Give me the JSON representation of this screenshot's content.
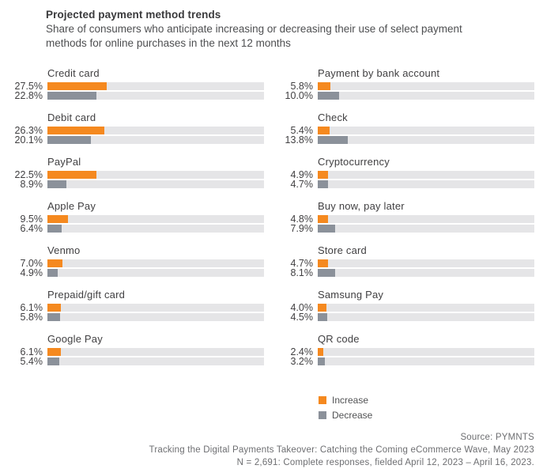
{
  "header": {
    "title": "Projected payment method trends",
    "subtitle": "Share of consumers who anticipate increasing or decreasing their use of select payment methods for online purchases in the next 12 months"
  },
  "colors": {
    "increase": "#f5891f",
    "decrease": "#8b919a",
    "track": "#e5e5e7",
    "title_text": "#3a3a3c",
    "footer_text": "#6d6e71"
  },
  "legend": {
    "increase_label": "Increase",
    "decrease_label": "Decrease"
  },
  "footer": {
    "source": "Source: PYMNTS",
    "report": "Tracking the Digital Payments Takeover: Catching the Coming eCommerce Wave, May 2023",
    "sample": "N = 2,691: Complete responses, fielded April 12, 2023 – April 16, 2023."
  },
  "chart_data": {
    "type": "bar",
    "orientation": "horizontal",
    "title": "Projected payment method trends",
    "series": [
      "Increase",
      "Decrease"
    ],
    "value_unit": "%",
    "axis_max": 100,
    "grid": false,
    "legend_position": "bottom-right",
    "columns": [
      {
        "groups": [
          {
            "label": "Credit card",
            "increase": 27.5,
            "decrease": 22.8,
            "increase_label": "27.5%",
            "decrease_label": "22.8%"
          },
          {
            "label": "Debit card",
            "increase": 26.3,
            "decrease": 20.1,
            "increase_label": "26.3%",
            "decrease_label": "20.1%"
          },
          {
            "label": "PayPal",
            "increase": 22.5,
            "decrease": 8.9,
            "increase_label": "22.5%",
            "decrease_label": "8.9%"
          },
          {
            "label": "Apple Pay",
            "increase": 9.5,
            "decrease": 6.4,
            "increase_label": "9.5%",
            "decrease_label": "6.4%"
          },
          {
            "label": "Venmo",
            "increase": 7.0,
            "decrease": 4.9,
            "increase_label": "7.0%",
            "decrease_label": "4.9%"
          },
          {
            "label": "Prepaid/gift card",
            "increase": 6.1,
            "decrease": 5.8,
            "increase_label": "6.1%",
            "decrease_label": "5.8%"
          },
          {
            "label": "Google Pay",
            "increase": 6.1,
            "decrease": 5.4,
            "increase_label": "6.1%",
            "decrease_label": "5.4%"
          }
        ]
      },
      {
        "groups": [
          {
            "label": "Payment by bank account",
            "increase": 5.8,
            "decrease": 10.0,
            "increase_label": "5.8%",
            "decrease_label": "10.0%"
          },
          {
            "label": "Check",
            "increase": 5.4,
            "decrease": 13.8,
            "increase_label": "5.4%",
            "decrease_label": "13.8%"
          },
          {
            "label": "Cryptocurrency",
            "increase": 4.9,
            "decrease": 4.7,
            "increase_label": "4.9%",
            "decrease_label": "4.7%"
          },
          {
            "label": "Buy now, pay later",
            "increase": 4.8,
            "decrease": 7.9,
            "increase_label": "4.8%",
            "decrease_label": "7.9%"
          },
          {
            "label": "Store card",
            "increase": 4.7,
            "decrease": 8.1,
            "increase_label": "4.7%",
            "decrease_label": "8.1%"
          },
          {
            "label": "Samsung Pay",
            "increase": 4.0,
            "decrease": 4.5,
            "increase_label": "4.0%",
            "decrease_label": "4.5%"
          },
          {
            "label": "QR code",
            "increase": 2.4,
            "decrease": 3.2,
            "increase_label": "2.4%",
            "decrease_label": "3.2%"
          }
        ]
      }
    ]
  }
}
